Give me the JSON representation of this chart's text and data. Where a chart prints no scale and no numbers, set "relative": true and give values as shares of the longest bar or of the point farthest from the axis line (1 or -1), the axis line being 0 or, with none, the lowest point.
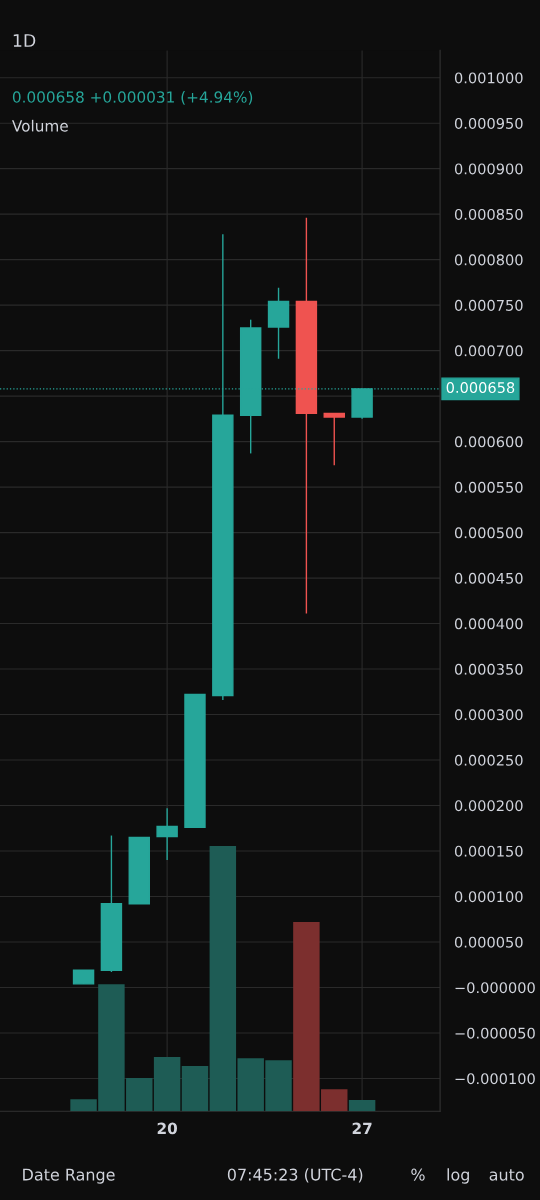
{
  "chart_data": [
    {
      "type": "candlestick",
      "title": "1D",
      "x": [
        17,
        18,
        19,
        20,
        21,
        22,
        23,
        24,
        25,
        26,
        27
      ],
      "ohlc": [
        [
          4e-06,
          1.9e-05,
          4e-06,
          1.9e-05
        ],
        [
          1.9e-05,
          0.000167,
          1.7e-05,
          9.2e-05
        ],
        [
          9.2e-05,
          0.000165,
          9.2e-05,
          0.000165
        ],
        [
          0.000166,
          0.000197,
          0.00014,
          0.000177
        ],
        [
          0.000176,
          0.000322,
          0.000176,
          0.000322
        ],
        [
          0.000321,
          0.000828,
          0.000316,
          0.000629
        ],
        [
          0.000629,
          0.000734,
          0.000587,
          0.000725
        ],
        [
          0.000726,
          0.000769,
          0.000691,
          0.000754
        ],
        [
          0.000754,
          0.000846,
          0.000411,
          0.000631
        ],
        [
          0.000631,
          0.000631,
          0.000574,
          0.000627
        ],
        [
          0.000627,
          0.000658,
          0.000625,
          0.000658
        ]
      ],
      "colors": [
        "#26a69a",
        "#26a69a",
        "#26a69a",
        "#26a69a",
        "#26a69a",
        "#26a69a",
        "#26a69a",
        "#26a69a",
        "#ef5350",
        "#ef5350",
        "#26a69a"
      ],
      "xlim": [
        14.0,
        29.8
      ],
      "xticks": [
        20,
        27
      ],
      "ylim": [
        -0.000136,
        0.00103
      ],
      "yticks": [
        {
          "value": -0.0001,
          "label": "−0.000100"
        },
        {
          "value": -5e-05,
          "label": "−0.000050"
        },
        {
          "value": 0,
          "label": "−0.000000"
        },
        {
          "value": 5e-05,
          "label": "0.000050"
        },
        {
          "value": 0.0001,
          "label": "0.000100"
        },
        {
          "value": 0.00015,
          "label": "0.000150"
        },
        {
          "value": 0.0002,
          "label": "0.000200"
        },
        {
          "value": 0.00025,
          "label": "0.000250"
        },
        {
          "value": 0.0003,
          "label": "0.000300"
        },
        {
          "value": 0.00035,
          "label": "0.000350"
        },
        {
          "value": 0.0004,
          "label": "0.000400"
        },
        {
          "value": 0.00045,
          "label": "0.000450"
        },
        {
          "value": 0.0005,
          "label": "0.000500"
        },
        {
          "value": 0.00055,
          "label": "0.000550"
        },
        {
          "value": 0.0006,
          "label": "0.000600"
        },
        {
          "value": 0.00065,
          "label": null
        },
        {
          "value": 0.0007,
          "label": "0.000700"
        },
        {
          "value": 0.00075,
          "label": "0.000750"
        },
        {
          "value": 0.0008,
          "label": "0.000800"
        },
        {
          "value": 0.00085,
          "label": "0.000850"
        },
        {
          "value": 0.0009,
          "label": "0.000900"
        },
        {
          "value": 0.00095,
          "label": "0.000950"
        },
        {
          "value": 0.001,
          "label": "0.001000"
        }
      ],
      "ref_lines": [
        {
          "axis": "y",
          "value": 0.000658,
          "label": "0.000658",
          "color": "#26a69a",
          "line_style": "dotted"
        }
      ],
      "grid": true,
      "annotations": [
        "0.000658 +0.000031 (+4.94%)",
        "Date Range",
        "07:45:23 (UTC-4)",
        "%",
        "log",
        "auto"
      ]
    },
    {
      "type": "bar",
      "title": "Volume",
      "relative": true,
      "x": [
        17,
        18,
        19,
        20,
        21,
        22,
        23,
        24,
        25,
        26,
        27
      ],
      "xlim": [
        14.0,
        29.8
      ],
      "values": [
        0.045,
        0.479,
        0.125,
        0.204,
        0.17,
        1,
        0.2,
        0.192,
        0.713,
        0.083,
        0.042
      ],
      "colors": [
        "#1e5c55",
        "#1e5c55",
        "#1e5c55",
        "#1e5c55",
        "#1e5c55",
        "#1e5c55",
        "#1e5c55",
        "#1e5c55",
        "#7c2f2e",
        "#7c2f2e",
        "#1e5c55"
      ]
    }
  ]
}
